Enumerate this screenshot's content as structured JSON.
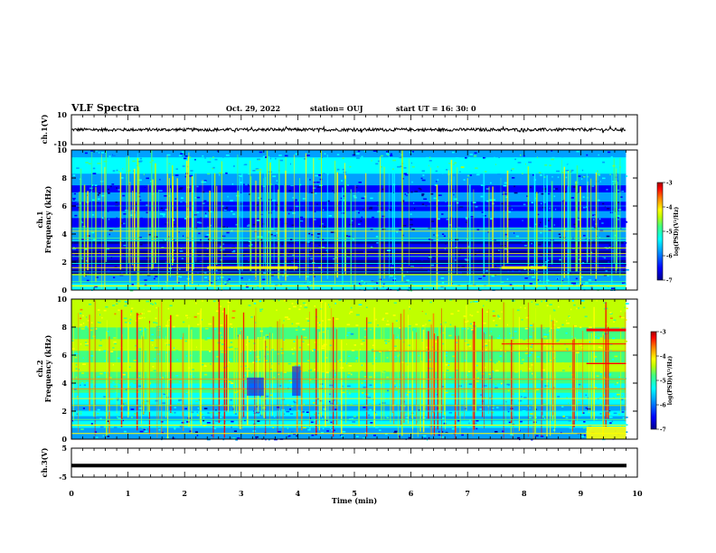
{
  "header": {
    "title": "VLF Spectra",
    "date": "Oct. 29, 2022",
    "station": "station= OUJ",
    "start": "start UT =  16: 30: 0"
  },
  "colors": {
    "colormap": [
      "#00008c",
      "#0000ff",
      "#00a0ff",
      "#00ffff",
      "#40ff80",
      "#c0ff00",
      "#ffff00",
      "#ff8000",
      "#ff0000",
      "#a00000"
    ],
    "trace": "#000000"
  },
  "chart_data": [
    {
      "type": "line",
      "name": "ch1-waveform",
      "ylabel": "ch.1(V)",
      "ylim": [
        -10,
        10
      ],
      "yticks": [
        "10",
        "-10"
      ],
      "xlim": [
        0,
        10
      ],
      "approx_mean": 0,
      "approx_amplitude": 1
    },
    {
      "type": "heatmap",
      "name": "ch1-spectrogram",
      "ylabel_lines": [
        "ch.1",
        "Frequency (kHz)"
      ],
      "ylim": [
        0,
        10
      ],
      "yticks": [
        "0",
        "2",
        "4",
        "6",
        "8",
        "10"
      ],
      "xlim": [
        0,
        9.8
      ],
      "colorbar": {
        "label": "log(PSD)(V²/Hz)",
        "range": [
          -7,
          -3
        ],
        "ticks": [
          "-3",
          "-4",
          "-5",
          "-6",
          "-7"
        ]
      },
      "features": [
        "broadband vertical impulses",
        "strong narrowband lines below 4 kHz",
        "low-power band 1-3 kHz"
      ]
    },
    {
      "type": "heatmap",
      "name": "ch2-spectrogram",
      "ylabel_lines": [
        "ch.2",
        "Frequency (kHz)"
      ],
      "ylim": [
        0,
        10
      ],
      "yticks": [
        "0",
        "2",
        "4",
        "6",
        "8",
        "10"
      ],
      "xlim": [
        0,
        9.8
      ],
      "colorbar": {
        "label": "log(PSD)(V²/Hz)",
        "range": [
          -7,
          -3
        ],
        "ticks": [
          "-3",
          "-4",
          "-5",
          "-6",
          "-7"
        ]
      },
      "features": [
        "higher overall power than ch.1",
        "emission near 7.8 kHz after 9.1 min"
      ]
    },
    {
      "type": "line",
      "name": "ch3-waveform",
      "ylabel": "ch.3(V)",
      "ylim": [
        -5,
        5
      ],
      "yticks": [
        "5",
        "-5"
      ],
      "xlim": [
        0,
        10
      ],
      "approx_mean": -1
    }
  ],
  "xaxis": {
    "label": "Time (min)",
    "ticks": [
      "0",
      "1",
      "2",
      "3",
      "4",
      "5",
      "6",
      "7",
      "8",
      "9",
      "10"
    ]
  }
}
